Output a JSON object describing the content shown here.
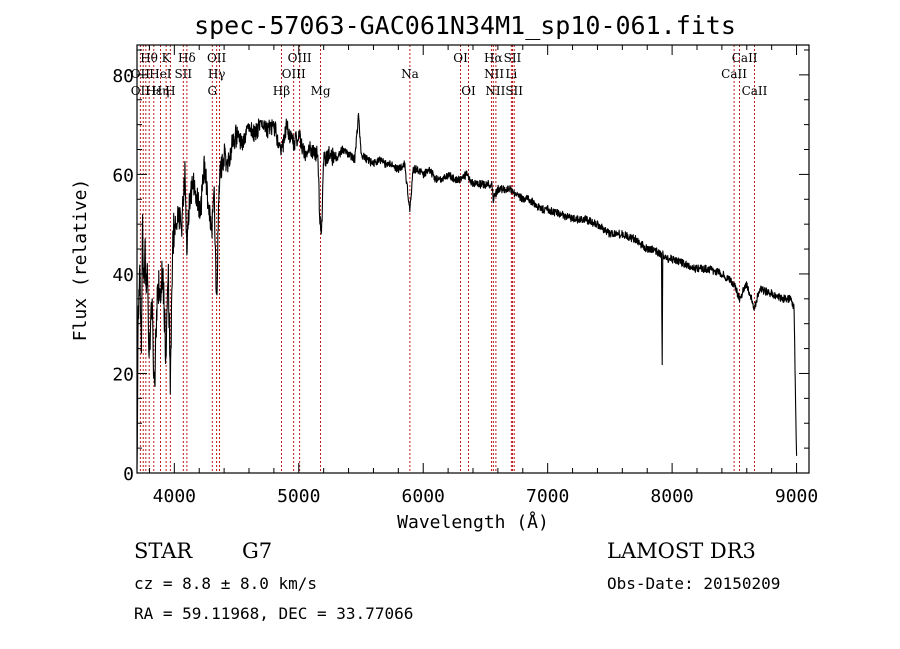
{
  "chart_data": {
    "type": "line",
    "title": "spec-57063-GAC061N34M1_sp10-061.fits",
    "xlabel": "Wavelength (Å)",
    "ylabel": "Flux (relative)",
    "xlim": [
      3700,
      9100
    ],
    "ylim": [
      0,
      86
    ],
    "xticks": [
      4000,
      5000,
      6000,
      7000,
      8000,
      9000
    ],
    "yticks": [
      0,
      20,
      40,
      60,
      80
    ],
    "x_minor_step": 200,
    "y_minor_step": 5,
    "series": [
      {
        "name": "flux",
        "anchors": [
          [
            3700,
            2
          ],
          [
            3710,
            30
          ],
          [
            3720,
            42
          ],
          [
            3735,
            28
          ],
          [
            3745,
            52
          ],
          [
            3755,
            38
          ],
          [
            3765,
            48
          ],
          [
            3775,
            34
          ],
          [
            3785,
            40
          ],
          [
            3800,
            22
          ],
          [
            3812,
            35
          ],
          [
            3825,
            32
          ],
          [
            3840,
            15
          ],
          [
            3855,
            30
          ],
          [
            3870,
            38
          ],
          [
            3885,
            35
          ],
          [
            3900,
            40
          ],
          [
            3915,
            36
          ],
          [
            3933,
            22
          ],
          [
            3950,
            42
          ],
          [
            3968,
            18
          ],
          [
            3985,
            45
          ],
          [
            4000,
            50
          ],
          [
            4030,
            52
          ],
          [
            4060,
            50
          ],
          [
            4085,
            60
          ],
          [
            4101,
            44
          ],
          [
            4120,
            55
          ],
          [
            4150,
            58
          ],
          [
            4180,
            56
          ],
          [
            4210,
            52
          ],
          [
            4240,
            62
          ],
          [
            4270,
            55
          ],
          [
            4300,
            48
          ],
          [
            4320,
            56
          ],
          [
            4340,
            34
          ],
          [
            4360,
            58
          ],
          [
            4380,
            62
          ],
          [
            4400,
            64
          ],
          [
            4430,
            62
          ],
          [
            4460,
            66
          ],
          [
            4500,
            68
          ],
          [
            4550,
            66
          ],
          [
            4600,
            70
          ],
          [
            4650,
            68
          ],
          [
            4700,
            71
          ],
          [
            4750,
            69
          ],
          [
            4800,
            70
          ],
          [
            4861,
            64
          ],
          [
            4900,
            70
          ],
          [
            4950,
            66
          ],
          [
            5000,
            68
          ],
          [
            5050,
            64
          ],
          [
            5100,
            65
          ],
          [
            5150,
            64
          ],
          [
            5172,
            50
          ],
          [
            5183,
            48
          ],
          [
            5200,
            63
          ],
          [
            5250,
            64
          ],
          [
            5300,
            63
          ],
          [
            5350,
            65
          ],
          [
            5400,
            64
          ],
          [
            5450,
            63
          ],
          [
            5480,
            72
          ],
          [
            5500,
            64
          ],
          [
            5550,
            63
          ],
          [
            5600,
            62
          ],
          [
            5650,
            63
          ],
          [
            5700,
            62
          ],
          [
            5750,
            62
          ],
          [
            5800,
            61
          ],
          [
            5850,
            62
          ],
          [
            5893,
            53
          ],
          [
            5920,
            61
          ],
          [
            5950,
            61
          ],
          [
            6000,
            60
          ],
          [
            6050,
            61
          ],
          [
            6100,
            59
          ],
          [
            6150,
            59
          ],
          [
            6200,
            60
          ],
          [
            6250,
            59
          ],
          [
            6300,
            59
          ],
          [
            6350,
            60
          ],
          [
            6400,
            58
          ],
          [
            6450,
            58
          ],
          [
            6500,
            58
          ],
          [
            6550,
            58
          ],
          [
            6563,
            55
          ],
          [
            6600,
            57
          ],
          [
            6650,
            57
          ],
          [
            6700,
            57
          ],
          [
            6750,
            56
          ],
          [
            6800,
            55
          ],
          [
            6850,
            55
          ],
          [
            6900,
            54
          ],
          [
            6950,
            53
          ],
          [
            7000,
            53
          ],
          [
            7100,
            52
          ],
          [
            7200,
            51
          ],
          [
            7300,
            51
          ],
          [
            7400,
            50
          ],
          [
            7500,
            48
          ],
          [
            7600,
            48
          ],
          [
            7700,
            47
          ],
          [
            7800,
            45
          ],
          [
            7850,
            45
          ],
          [
            7900,
            44
          ],
          [
            7915,
            44
          ],
          [
            7920,
            22
          ],
          [
            7925,
            44
          ],
          [
            7950,
            43
          ],
          [
            8000,
            43
          ],
          [
            8100,
            42
          ],
          [
            8200,
            41
          ],
          [
            8300,
            41
          ],
          [
            8400,
            40
          ],
          [
            8500,
            38
          ],
          [
            8542,
            35
          ],
          [
            8600,
            38
          ],
          [
            8662,
            33
          ],
          [
            8700,
            37
          ],
          [
            8800,
            36
          ],
          [
            8900,
            35
          ],
          [
            8950,
            35
          ],
          [
            8980,
            33
          ],
          [
            8995,
            10
          ],
          [
            9000,
            3
          ]
        ]
      }
    ],
    "line_labels": [
      {
        "text": "Hθ",
        "row": 1,
        "lam": 3797
      },
      {
        "text": "K",
        "row": 1,
        "lam": 3934
      },
      {
        "text": "Hδ",
        "row": 1,
        "lam": 4101
      },
      {
        "text": "OII",
        "row": 1,
        "lam": 4340
      },
      {
        "text": "OIII",
        "row": 1,
        "lam": 5007
      },
      {
        "text": "OI",
        "row": 1,
        "lam": 6300
      },
      {
        "text": "Hα",
        "row": 1,
        "lam": 6563
      },
      {
        "text": "SII",
        "row": 1,
        "lam": 6717
      },
      {
        "text": "CaII",
        "row": 1,
        "lam": 8583
      },
      {
        "text": "OII",
        "row": 2,
        "lam": 3727
      },
      {
        "text": "HeI",
        "row": 2,
        "lam": 3888
      },
      {
        "text": "SII",
        "row": 2,
        "lam": 4072
      },
      {
        "text": "Hγ",
        "row": 2,
        "lam": 4340
      },
      {
        "text": "OIII",
        "row": 2,
        "lam": 4959
      },
      {
        "text": "Na",
        "row": 2,
        "lam": 5893
      },
      {
        "text": "NII",
        "row": 2,
        "lam": 6570
      },
      {
        "text": "Li",
        "row": 2,
        "lam": 6708
      },
      {
        "text": "CaII",
        "row": 2,
        "lam": 8498
      },
      {
        "text": "OII",
        "row": 3,
        "lam": 3727
      },
      {
        "text": "Hε",
        "row": 3,
        "lam": 3835
      },
      {
        "text": "Hη",
        "row": 3,
        "lam": 3889
      },
      {
        "text": "H",
        "row": 3,
        "lam": 3968
      },
      {
        "text": "G",
        "row": 3,
        "lam": 4305
      },
      {
        "text": "Hβ",
        "row": 3,
        "lam": 4861
      },
      {
        "text": "Mg",
        "row": 3,
        "lam": 5175
      },
      {
        "text": "OI",
        "row": 3,
        "lam": 6364
      },
      {
        "text": "NII",
        "row": 3,
        "lam": 6580
      },
      {
        "text": "SII",
        "row": 3,
        "lam": 6731
      },
      {
        "text": "CaII",
        "row": 3,
        "lam": 8662
      }
    ],
    "line_markers": [
      3727,
      3750,
      3771,
      3798,
      3835,
      3889,
      3934,
      3968,
      4072,
      4101,
      4305,
      4340,
      4363,
      4861,
      4959,
      5007,
      5175,
      5893,
      6300,
      6364,
      6548,
      6563,
      6584,
      6708,
      6717,
      6731,
      8498,
      8542,
      8662
    ],
    "marker_color": "#b40000"
  },
  "info": {
    "object_class": "STAR",
    "subclass": "G7",
    "survey": "LAMOST DR3",
    "cz": "cz = 8.8 ± 8.0 km/s",
    "obs_date": "Obs-Date: 20150209",
    "coords": "RA =  59.11968, DEC =  33.77066"
  }
}
